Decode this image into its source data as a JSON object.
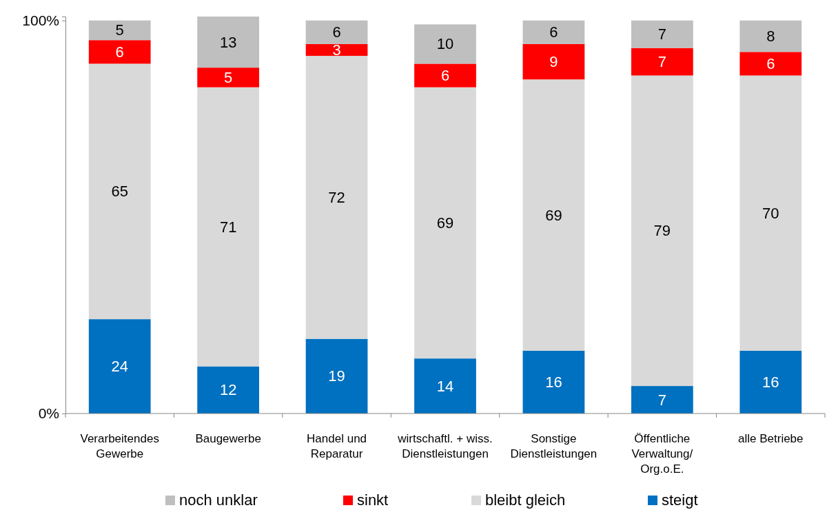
{
  "chart_data": {
    "type": "bar",
    "stacked": true,
    "categories": [
      "Verarbeitendes Gewerbe",
      "Baugewerbe",
      "Handel und Reparatur",
      "wirtschaftl. + wiss. Dienstleistungen",
      "Sonstige Dienstleistungen",
      "Öffentliche Verwaltung/ Org.o.E.",
      "alle Betriebe"
    ],
    "series": [
      {
        "name": "steigt",
        "color": "#0070c0",
        "values": [
          24,
          12,
          19,
          14,
          16,
          7,
          16
        ]
      },
      {
        "name": "bleibt gleich",
        "color": "#d9d9d9",
        "values": [
          65,
          71,
          72,
          69,
          69,
          79,
          70
        ]
      },
      {
        "name": "sinkt",
        "color": "#ff0000",
        "values": [
          6,
          5,
          3,
          6,
          9,
          7,
          6
        ]
      },
      {
        "name": "noch unklar",
        "color": "#bfbfbf",
        "values": [
          5,
          13,
          6,
          10,
          6,
          7,
          8
        ]
      }
    ],
    "ylim": [
      0,
      101
    ],
    "yticks": [
      {
        "value": 0,
        "label": "0%"
      },
      {
        "value": 100,
        "label": "100%"
      }
    ],
    "data_labels": true,
    "legend": "bottom",
    "grid": false
  }
}
